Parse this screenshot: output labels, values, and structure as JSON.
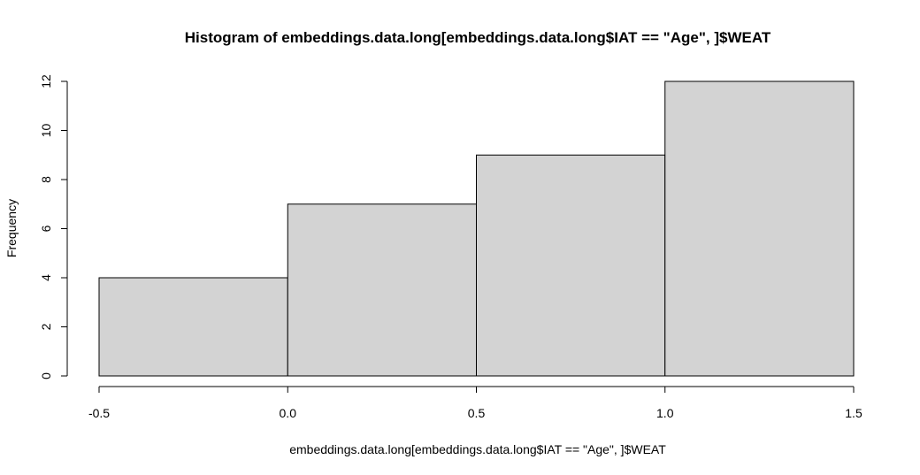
{
  "chart_data": {
    "type": "bar",
    "title": "Histogram of embeddings.data.long[embeddings.data.long$IAT == \"Age\", ]$WEAT",
    "xlabel": "embeddings.data.long[embeddings.data.long$IAT == \"Age\", ]$WEAT",
    "ylabel": "Frequency",
    "bins": [
      {
        "from": -0.5,
        "to": 0.0,
        "count": 4
      },
      {
        "from": 0.0,
        "to": 0.5,
        "count": 7
      },
      {
        "from": 0.5,
        "to": 1.0,
        "count": 9
      },
      {
        "from": 1.0,
        "to": 1.5,
        "count": 12
      }
    ],
    "xlim": [
      -0.5,
      1.5
    ],
    "ylim": [
      0,
      12
    ],
    "x_ticks": [
      "-0.5",
      "0.0",
      "0.5",
      "1.0",
      "1.5"
    ],
    "y_ticks": [
      "0",
      "2",
      "4",
      "6",
      "8",
      "10",
      "12"
    ],
    "bar_fill": "#d3d3d3",
    "bar_stroke": "#000000",
    "grid": false,
    "legend": "none"
  }
}
